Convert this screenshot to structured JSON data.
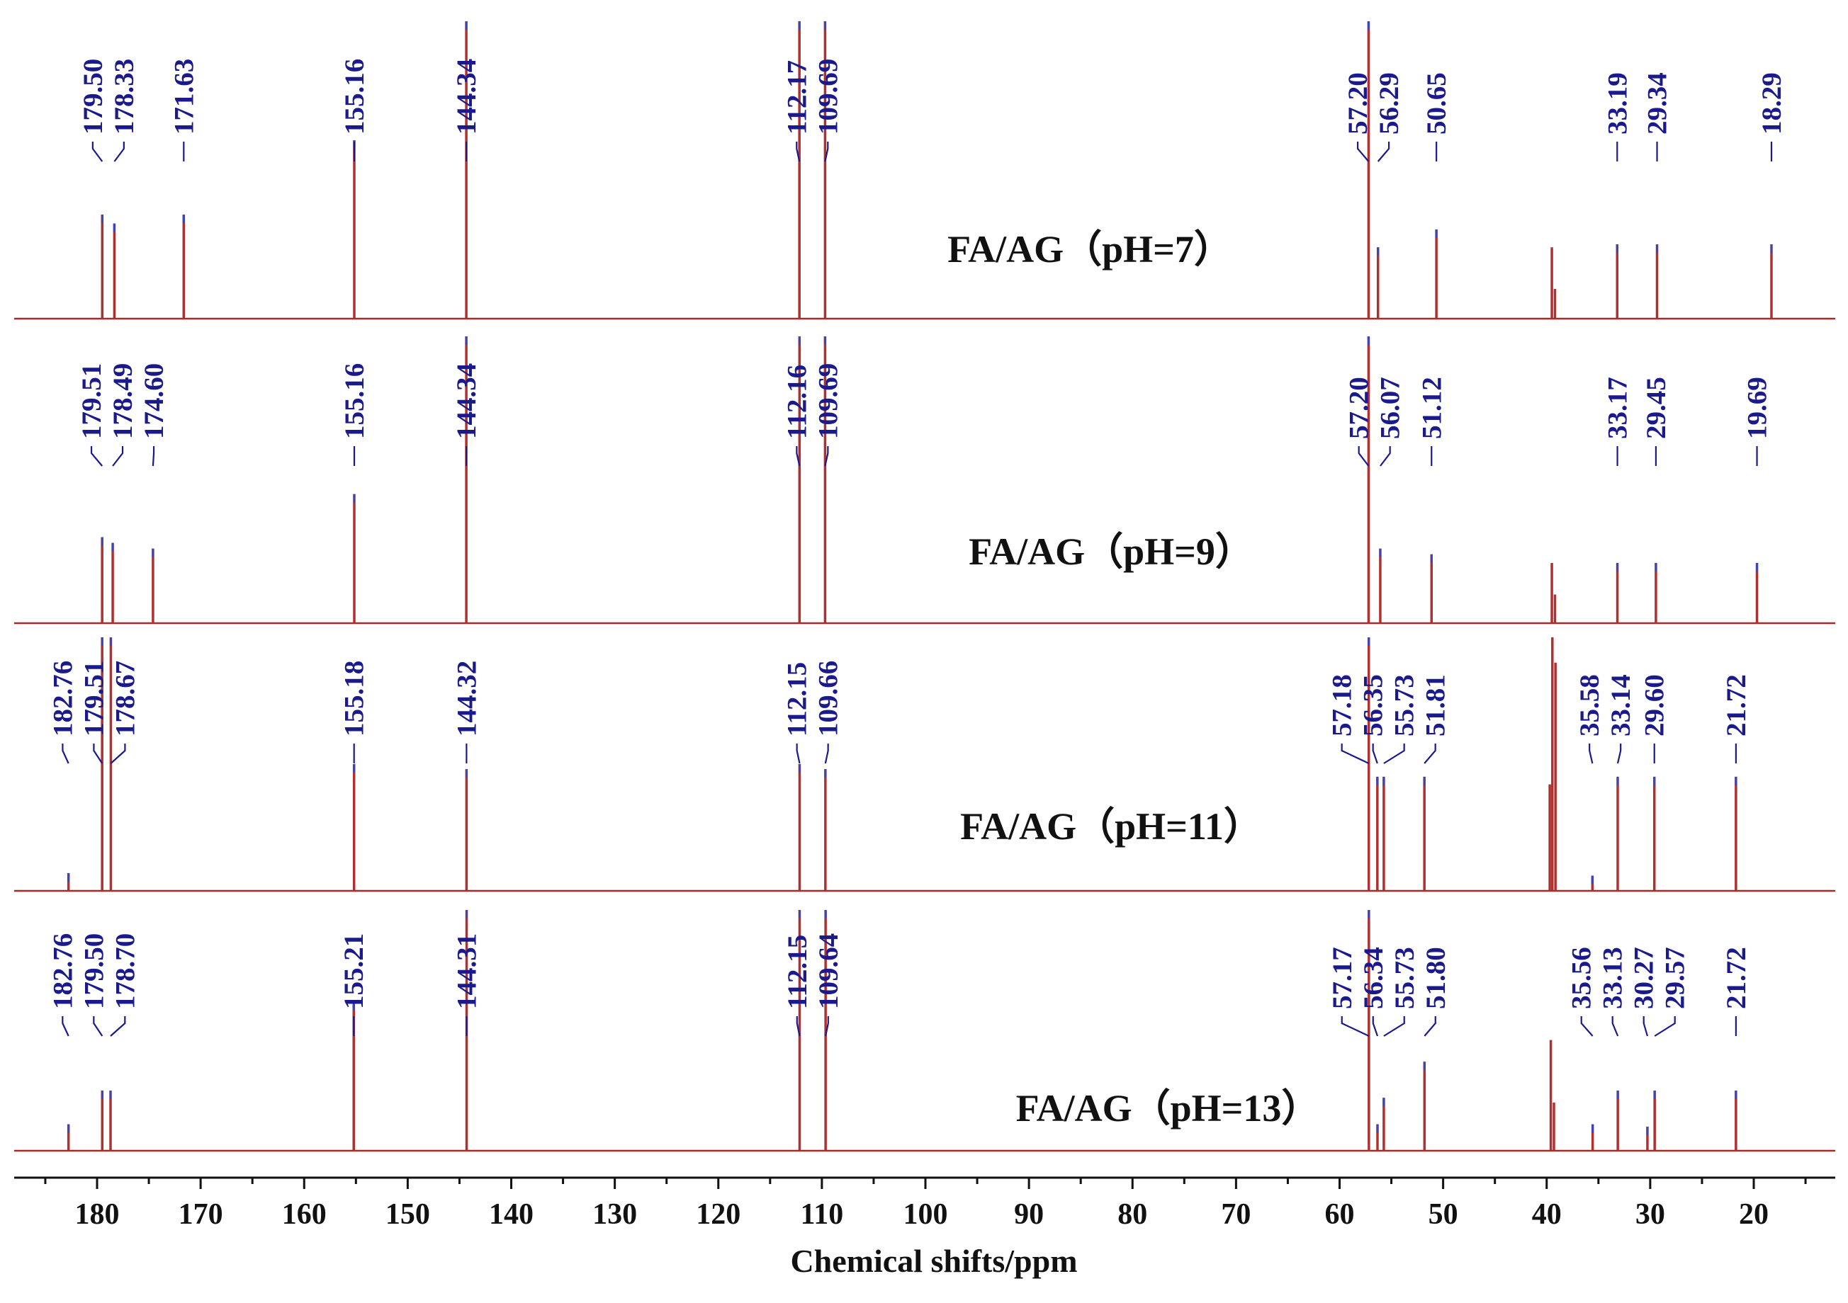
{
  "chart_data": {
    "type": "line",
    "title": "",
    "xlabel": "Chemical shifts/ppm",
    "ylabel": "",
    "xlim": [
      188,
      13
    ],
    "x_ticks": [
      "180",
      "170",
      "160",
      "150",
      "140",
      "130",
      "120",
      "110",
      "100",
      "90",
      "80",
      "70",
      "60",
      "50",
      "40",
      "30",
      "20"
    ],
    "series": [
      {
        "name": "FA/AG（pH=7）",
        "labeled_peaks": [
          {
            "ppm": 179.5,
            "label": "179.50",
            "h": 0.35
          },
          {
            "ppm": 178.33,
            "label": "178.33",
            "h": 0.32
          },
          {
            "ppm": 171.63,
            "label": "171.63",
            "h": 0.35
          },
          {
            "ppm": 155.16,
            "label": "155.16",
            "h": 0.6
          },
          {
            "ppm": 144.34,
            "label": "144.34",
            "h": 1.0
          },
          {
            "ppm": 112.17,
            "label": "112.17",
            "h": 1.0
          },
          {
            "ppm": 109.69,
            "label": "109.69",
            "h": 1.0
          },
          {
            "ppm": 57.2,
            "label": "57.20",
            "h": 1.0
          },
          {
            "ppm": 56.29,
            "label": "56.29",
            "h": 0.24
          },
          {
            "ppm": 50.65,
            "label": "50.65",
            "h": 0.3
          },
          {
            "ppm": 33.19,
            "label": "33.19",
            "h": 0.25
          },
          {
            "ppm": 29.34,
            "label": "29.34",
            "h": 0.25
          },
          {
            "ppm": 18.29,
            "label": "18.29",
            "h": 0.25
          }
        ],
        "solvent_peaks": [
          {
            "ppm": 39.5,
            "h": 0.24
          },
          {
            "ppm": 39.2,
            "h": 0.1
          }
        ]
      },
      {
        "name": "FA/AG（pH=9）",
        "labeled_peaks": [
          {
            "ppm": 179.51,
            "label": "179.51",
            "h": 0.3
          },
          {
            "ppm": 178.49,
            "label": "178.49",
            "h": 0.28
          },
          {
            "ppm": 174.6,
            "label": "174.60",
            "h": 0.26
          },
          {
            "ppm": 155.16,
            "label": "155.16",
            "h": 0.45
          },
          {
            "ppm": 144.34,
            "label": "144.34",
            "h": 1.0
          },
          {
            "ppm": 112.16,
            "label": "112.16",
            "h": 1.0
          },
          {
            "ppm": 109.69,
            "label": "109.69",
            "h": 1.0
          },
          {
            "ppm": 57.2,
            "label": "57.20",
            "h": 1.0
          },
          {
            "ppm": 56.07,
            "label": "56.07",
            "h": 0.26
          },
          {
            "ppm": 51.12,
            "label": "51.12",
            "h": 0.24
          },
          {
            "ppm": 33.17,
            "label": "33.17",
            "h": 0.21
          },
          {
            "ppm": 29.45,
            "label": "29.45",
            "h": 0.21
          },
          {
            "ppm": 19.69,
            "label": "19.69",
            "h": 0.21
          }
        ],
        "solvent_peaks": [
          {
            "ppm": 39.5,
            "h": 0.21
          },
          {
            "ppm": 39.2,
            "h": 0.1
          }
        ]
      },
      {
        "name": "FA/AG（pH=11）",
        "labeled_peaks": [
          {
            "ppm": 182.76,
            "label": "182.76",
            "h": 0.07
          },
          {
            "ppm": 179.51,
            "label": "179.51",
            "h": 1.0
          },
          {
            "ppm": 178.67,
            "label": "178.67",
            "h": 1.0
          },
          {
            "ppm": 155.18,
            "label": "155.18",
            "h": 0.5
          },
          {
            "ppm": 144.32,
            "label": "144.32",
            "h": 0.48
          },
          {
            "ppm": 112.15,
            "label": "112.15",
            "h": 0.5
          },
          {
            "ppm": 109.66,
            "label": "109.66",
            "h": 0.48
          },
          {
            "ppm": 57.18,
            "label": "57.18",
            "h": 1.0
          },
          {
            "ppm": 56.35,
            "label": "56.35",
            "h": 0.45
          },
          {
            "ppm": 55.73,
            "label": "55.73",
            "h": 0.45
          },
          {
            "ppm": 51.81,
            "label": "51.81",
            "h": 0.45
          },
          {
            "ppm": 35.58,
            "label": "35.58",
            "h": 0.06
          },
          {
            "ppm": 33.14,
            "label": "33.14",
            "h": 0.45
          },
          {
            "ppm": 29.6,
            "label": "29.60",
            "h": 0.45
          },
          {
            "ppm": 21.72,
            "label": "21.72",
            "h": 0.45
          }
        ],
        "solvent_peaks": [
          {
            "ppm": 39.7,
            "h": 0.42
          },
          {
            "ppm": 39.45,
            "h": 1.0
          },
          {
            "ppm": 39.15,
            "h": 0.9
          }
        ]
      },
      {
        "name": "FA/AG（pH=13）",
        "labeled_peaks": [
          {
            "ppm": 182.76,
            "label": "182.76",
            "h": 0.11
          },
          {
            "ppm": 179.5,
            "label": "179.50",
            "h": 0.25
          },
          {
            "ppm": 178.7,
            "label": "178.70",
            "h": 0.25
          },
          {
            "ppm": 155.21,
            "label": "155.21",
            "h": 0.62
          },
          {
            "ppm": 144.31,
            "label": "144.31",
            "h": 1.0
          },
          {
            "ppm": 112.15,
            "label": "112.15",
            "h": 1.0
          },
          {
            "ppm": 109.64,
            "label": "109.64",
            "h": 1.0
          },
          {
            "ppm": 57.17,
            "label": "57.17",
            "h": 1.0
          },
          {
            "ppm": 56.34,
            "label": "56.34",
            "h": 0.11
          },
          {
            "ppm": 55.73,
            "label": "55.73",
            "h": 0.22
          },
          {
            "ppm": 51.8,
            "label": "51.80",
            "h": 0.37
          },
          {
            "ppm": 35.56,
            "label": "35.56",
            "h": 0.11
          },
          {
            "ppm": 33.13,
            "label": "33.13",
            "h": 0.25
          },
          {
            "ppm": 30.27,
            "label": "30.27",
            "h": 0.1
          },
          {
            "ppm": 29.57,
            "label": "29.57",
            "h": 0.25
          },
          {
            "ppm": 21.72,
            "label": "21.72",
            "h": 0.25
          }
        ],
        "solvent_peaks": [
          {
            "ppm": 39.6,
            "h": 0.46
          },
          {
            "ppm": 39.3,
            "h": 0.2
          }
        ]
      }
    ]
  }
}
